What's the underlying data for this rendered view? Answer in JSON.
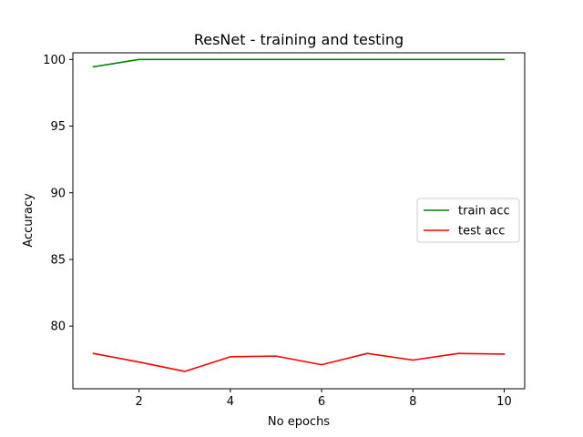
{
  "chart_data": {
    "type": "line",
    "title": "ResNet - training and testing",
    "xlabel": "No epochs",
    "ylabel": "Accuracy",
    "x": [
      1,
      2,
      3,
      4,
      5,
      6,
      7,
      8,
      9,
      10
    ],
    "xlim": [
      0.55,
      10.45
    ],
    "ylim": [
      75.3,
      100.5
    ],
    "xticks": [
      2,
      4,
      6,
      8,
      10
    ],
    "yticks": [
      80,
      85,
      90,
      95,
      100
    ],
    "grid": false,
    "legend_position": "center-right",
    "series": [
      {
        "name": "train acc",
        "color": "#008000",
        "values": [
          99.45,
          100.0,
          100.0,
          100.0,
          100.0,
          100.0,
          100.0,
          100.0,
          100.0,
          100.0
        ]
      },
      {
        "name": "test acc",
        "color": "#ff0000",
        "values": [
          77.95,
          77.3,
          76.6,
          77.7,
          77.75,
          77.1,
          77.95,
          77.45,
          77.95,
          77.9
        ]
      }
    ]
  }
}
